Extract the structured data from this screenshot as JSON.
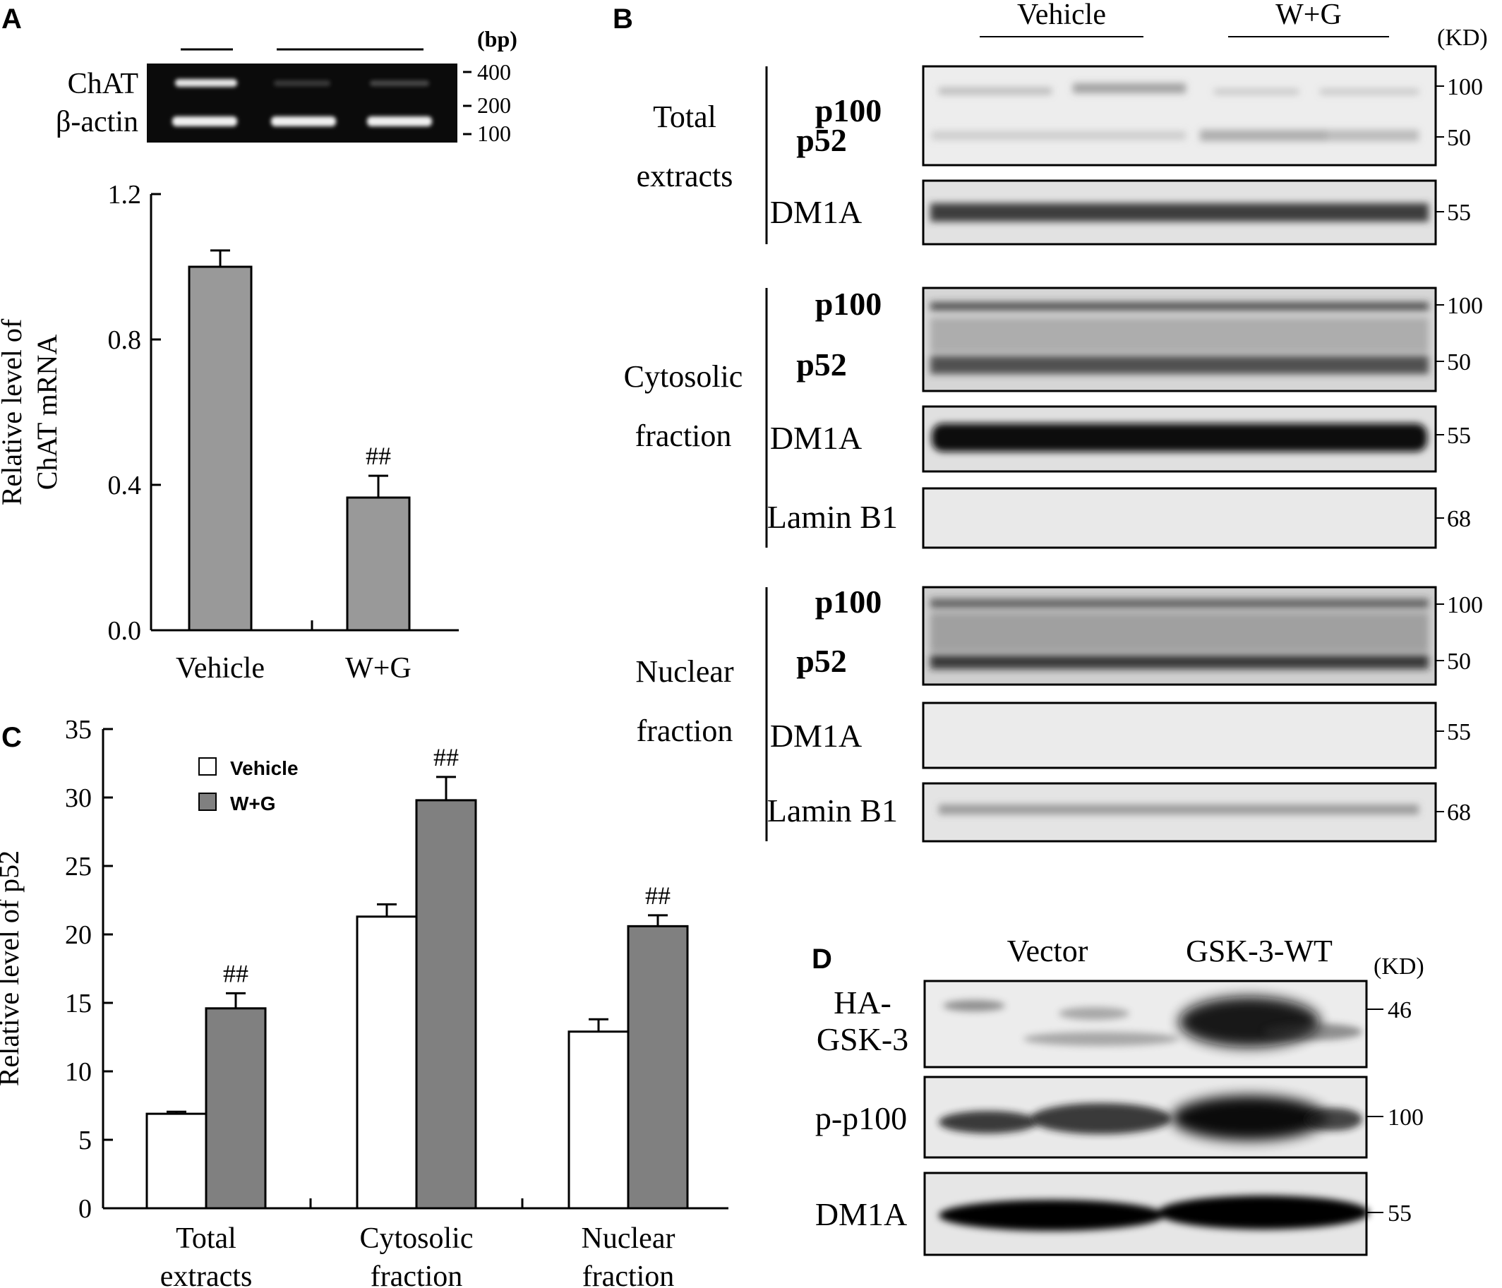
{
  "panels": {
    "a": "A",
    "b": "B",
    "c": "C",
    "d": "D"
  },
  "gel": {
    "unit": "(bp)",
    "labels": [
      "ChAT",
      "β-actin"
    ],
    "markers": [
      "400",
      "200",
      "100"
    ]
  },
  "blot_b": {
    "conditions": [
      "Vehicle",
      "W+G"
    ],
    "unit": "(KD)",
    "sections": [
      {
        "name_lines": [
          "Total",
          "extracts"
        ],
        "rows": [
          {
            "label": [
              "p100",
              "p52"
            ],
            "kd": [
              "100",
              "50"
            ]
          },
          {
            "label": [
              "DM1A"
            ],
            "kd": [
              "55"
            ]
          }
        ]
      },
      {
        "name_lines": [
          "Cytosolic",
          "fraction"
        ],
        "rows": [
          {
            "label": [
              "p100",
              "p52"
            ],
            "kd": [
              "100",
              "50"
            ]
          },
          {
            "label": [
              "DM1A"
            ],
            "kd": [
              "55"
            ]
          },
          {
            "label": [
              "Lamin B1"
            ],
            "kd": [
              "68"
            ]
          }
        ]
      },
      {
        "name_lines": [
          "Nuclear",
          "fraction"
        ],
        "rows": [
          {
            "label": [
              "p100",
              "p52"
            ],
            "kd": [
              "100",
              "50"
            ]
          },
          {
            "label": [
              "DM1A"
            ],
            "kd": [
              "55"
            ]
          },
          {
            "label": [
              "Lamin B1"
            ],
            "kd": [
              "68"
            ]
          }
        ]
      }
    ]
  },
  "blot_d": {
    "conditions": [
      "Vector",
      "GSK-3-WT"
    ],
    "unit": "(KD)",
    "rows": [
      {
        "label": [
          "HA-",
          "GSK-3"
        ],
        "kd": "46"
      },
      {
        "label": [
          "p-p100"
        ],
        "kd": "100"
      },
      {
        "label": [
          "DM1A"
        ],
        "kd": "55"
      }
    ]
  },
  "chart_data": [
    {
      "panel": "A",
      "type": "bar",
      "categories": [
        "Vehicle",
        "W+G"
      ],
      "values": [
        1.0,
        0.365
      ],
      "errors": [
        0.045,
        0.06
      ],
      "significance": [
        "",
        "##"
      ],
      "ylabel_lines": [
        "Relative level of",
        "ChAT mRNA"
      ],
      "ylim": [
        0,
        1.2
      ],
      "yticks": [
        "0.0",
        "0.4",
        "0.8",
        "1.2"
      ],
      "bar_color": "#999999"
    },
    {
      "panel": "C",
      "type": "bar",
      "categories": [
        [
          "Total",
          "extracts"
        ],
        [
          "Cytosolic",
          "fraction"
        ],
        [
          "Nuclear",
          "fraction"
        ]
      ],
      "series": [
        {
          "name": "Vehicle",
          "values": [
            6.9,
            21.3,
            12.9
          ],
          "errors": [
            0.15,
            0.9,
            0.9
          ],
          "color": "#ffffff"
        },
        {
          "name": "W+G",
          "values": [
            14.6,
            29.8,
            20.6
          ],
          "errors": [
            1.1,
            1.7,
            0.8
          ],
          "color": "#808080"
        }
      ],
      "significance": [
        "##",
        "##",
        "##"
      ],
      "ylabel": "Relative level of p52",
      "ylim": [
        0,
        35
      ],
      "yticks": [
        "0",
        "5",
        "10",
        "15",
        "20",
        "25",
        "30",
        "35"
      ],
      "legend_position": "top-left"
    }
  ]
}
